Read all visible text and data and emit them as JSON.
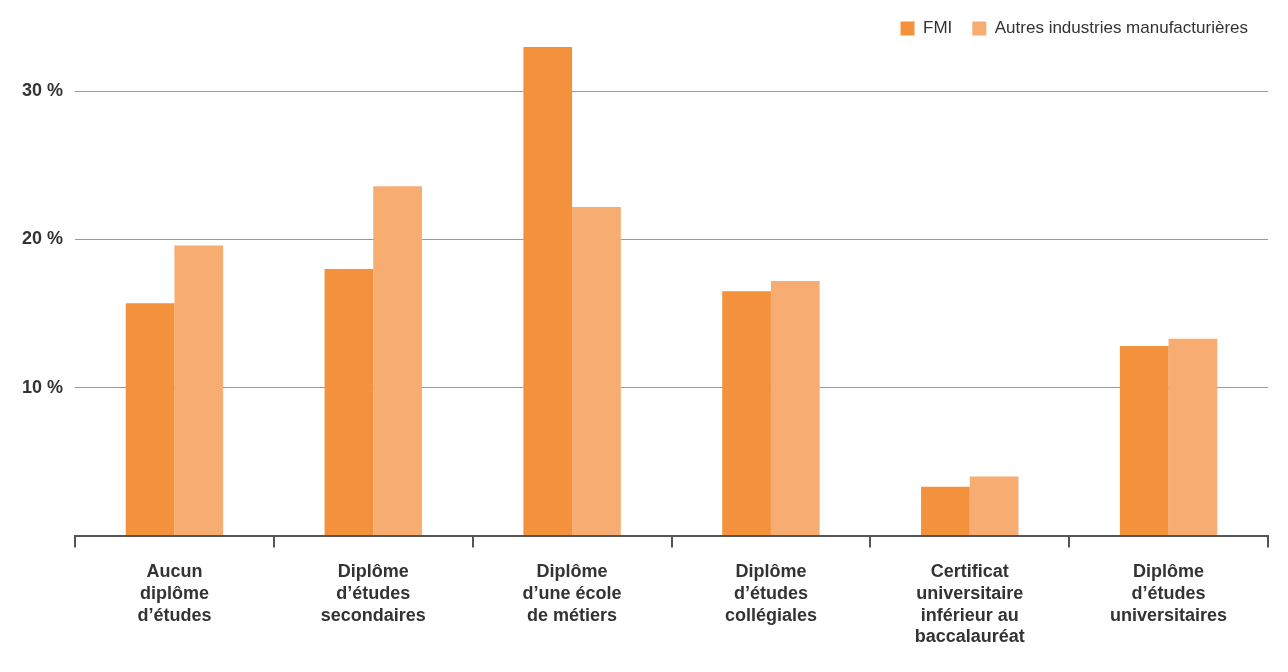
{
  "chart_data": {
    "type": "bar",
    "categories": [
      "Aucun\ndiplôme\nd’études",
      "Diplôme\nd’études\nsecondaires",
      "Diplôme\nd’une école\nde métiers",
      "Diplôme\nd’études\ncollégiales",
      "Certificat\nuniversitaire\ninférieur au\nbaccalauréat",
      "Diplôme\nd’études\nuniversitaires"
    ],
    "series": [
      {
        "name": "FMI",
        "color": "#f4913c",
        "values": [
          15.7,
          18.0,
          33.0,
          16.5,
          3.3,
          12.8
        ]
      },
      {
        "name": "Autres industries manufacturières",
        "color": "#f7ad72",
        "values": [
          19.6,
          23.6,
          22.2,
          17.2,
          4.0,
          13.3
        ]
      }
    ],
    "ylim": [
      0,
      33
    ],
    "yticks": [
      {
        "value": 0,
        "label": null
      },
      {
        "value": 10,
        "label": "10 %"
      },
      {
        "value": 20,
        "label": "20 %"
      },
      {
        "value": 30,
        "label": "30 %"
      }
    ],
    "grid": "y",
    "legend": "top right"
  }
}
